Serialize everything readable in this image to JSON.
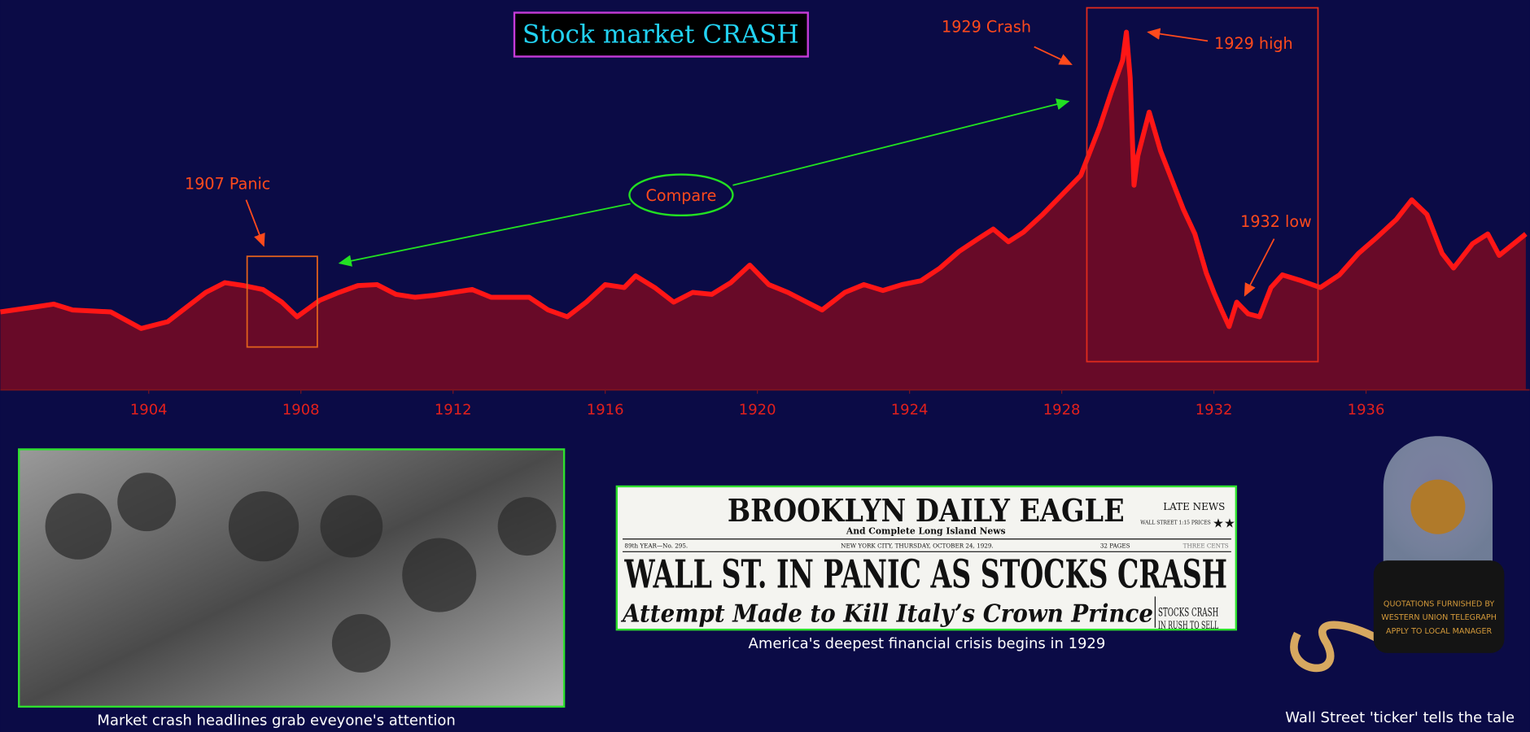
{
  "chart_data": {
    "type": "area",
    "title": "Stock market CRASH",
    "x": [
      1900.1,
      1901,
      1901.5,
      1902,
      1903,
      1903.8,
      1904.5,
      1905.5,
      1906,
      1906.5,
      1907,
      1907.5,
      1907.9,
      1908.5,
      1909,
      1909.5,
      1910,
      1910.5,
      1911,
      1911.5,
      1912,
      1912.5,
      1913,
      1913.5,
      1914,
      1914.5,
      1915,
      1915.5,
      1916,
      1916.5,
      1916.8,
      1917.3,
      1917.8,
      1918.3,
      1918.8,
      1919.3,
      1919.8,
      1920.3,
      1920.8,
      1921.3,
      1921.7,
      1922.3,
      1922.8,
      1923.3,
      1923.8,
      1924.3,
      1924.8,
      1925.3,
      1925.8,
      1926.2,
      1926.6,
      1927,
      1927.5,
      1928,
      1928.5,
      1929,
      1929.3,
      1929.6,
      1929.7,
      1929.8,
      1929.9,
      1930,
      1930.3,
      1930.6,
      1930.9,
      1931.2,
      1931.5,
      1931.8,
      1932,
      1932.2,
      1932.4,
      1932.6,
      1932.9,
      1933.2,
      1933.5,
      1933.8,
      1934.3,
      1934.8,
      1935.3,
      1935.8,
      1936.3,
      1936.8,
      1937.2,
      1937.6,
      1938,
      1938.3,
      1938.5,
      1938.8,
      1939.2,
      1939.5,
      1940.2
    ],
    "values": [
      80,
      85,
      88,
      82,
      80,
      63,
      70,
      100,
      110,
      107,
      103,
      90,
      75,
      92,
      100,
      107,
      108,
      98,
      95,
      97,
      100,
      103,
      95,
      95,
      95,
      82,
      75,
      90,
      108,
      105,
      117,
      105,
      90,
      100,
      98,
      110,
      128,
      108,
      100,
      90,
      82,
      100,
      108,
      102,
      108,
      112,
      125,
      142,
      155,
      165,
      152,
      162,
      180,
      200,
      220,
      270,
      305,
      338,
      367,
      320,
      210,
      240,
      285,
      245,
      215,
      185,
      160,
      120,
      100,
      82,
      65,
      90,
      78,
      75,
      105,
      118,
      112,
      105,
      118,
      140,
      157,
      175,
      195,
      180,
      140,
      125,
      135,
      150,
      160,
      138,
      160
    ],
    "color": "#ff1616",
    "fill": "#680a28",
    "xlim": [
      1900.1,
      1940.3
    ],
    "ylim": [
      0,
      400
    ],
    "xticks": [
      1904,
      1908,
      1912,
      1916,
      1920,
      1924,
      1928,
      1932,
      1936
    ],
    "annotations": [
      "1907 Panic",
      "Compare",
      "1929 Crash",
      "1929 high",
      "1932 low"
    ]
  },
  "photo": {
    "caption": "Market crash headlines grab eveyone's attention"
  },
  "newspaper": {
    "masthead": "BROOKLYN DAILY EAGLE",
    "subhead": "And Complete Long Island News",
    "late": "LATE NEWS",
    "prices": "WALL STREET 1:15 PRICES",
    "issue": "89th YEAR—No. 295.",
    "dateline": "NEW YORK CITY, THURSDAY, OCTOBER 24, 1929.",
    "pages": "32 PAGES",
    "price": "THREE CENTS",
    "headline": "WALL ST. IN PANIC AS STOCKS CRASH",
    "second": "Attempt Made to Kill Italy’s Crown Prince",
    "side": [
      "STOCKS CRASH",
      "IN RUSH TO SELL"
    ],
    "caption": "America's deepest financial crisis begins in 1929"
  },
  "ticker": {
    "plate": [
      "QUOTATIONS FURNISHED BY",
      "WESTERN UNION TELEGRAPH",
      "APPLY TO LOCAL MANAGER"
    ],
    "caption": "Wall Street 'ticker' tells the tale"
  }
}
